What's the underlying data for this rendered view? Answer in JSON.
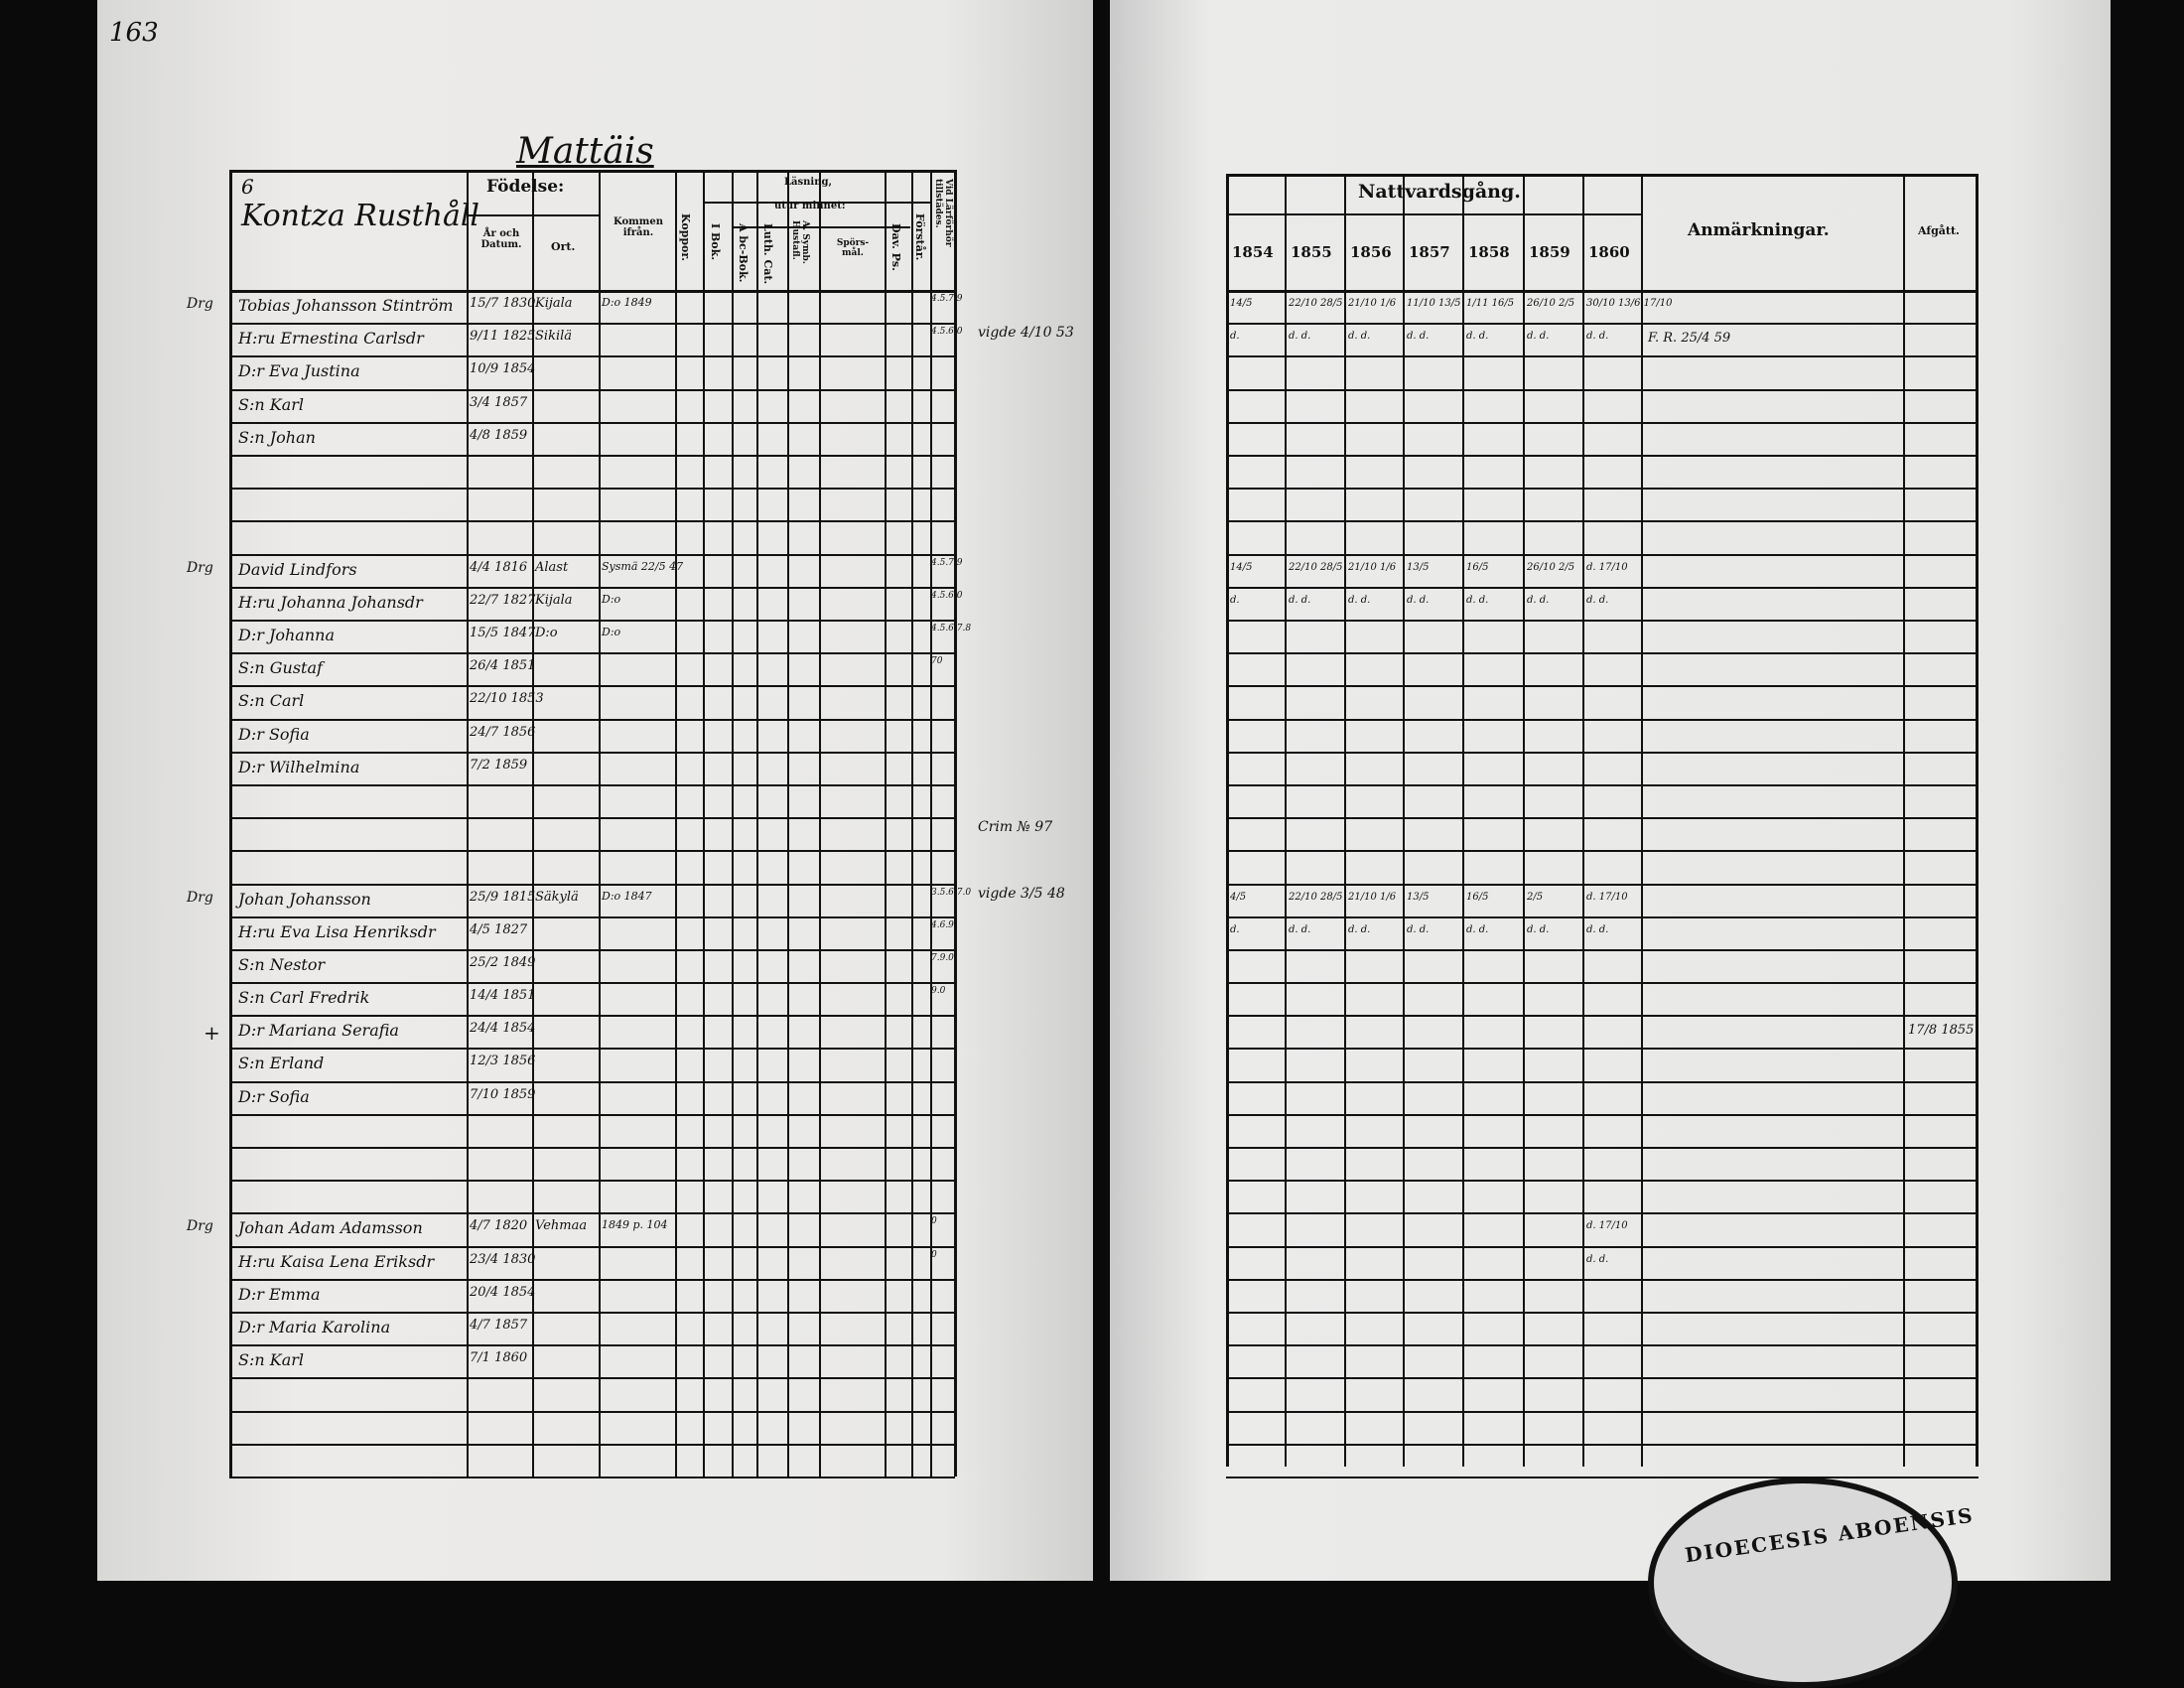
{
  "page_number": "163",
  "left": {
    "title": "Mattäis",
    "household_no": "6",
    "farm": "Kontza Rusthåll",
    "headers": {
      "fodelse": "Födelse:",
      "ar_datum": "År och Datum.",
      "ort": "Ort.",
      "kommen": "Kommen ifrån.",
      "koppor": "Koppor.",
      "lasning": "Läsning,",
      "utur": "utur minnet:",
      "bok": "I Bok.",
      "abc": "A bc-Bok.",
      "luth": "Luth. Cat.",
      "symb": "A. Symb. Hustafl.",
      "sporsmal": "Spörs-mål.",
      "davps": "Dav. Ps.",
      "forstar": "Förstår.",
      "vid": "Vid Lärförhör tillstädes."
    },
    "rows": [
      {
        "row": 0,
        "prefix": "Drg",
        "name": "Tobias Johansson Stintröm",
        "birth": "15/7 1830",
        "place": "Kijala",
        "from": "D:o 1849",
        "note": "4.5.7.9"
      },
      {
        "row": 1,
        "prefix": "",
        "name": "H:ru Ernestina Carlsdr",
        "birth": "9/11 1825",
        "place": "Sikilä",
        "from": "",
        "note": "4.5.6.0"
      },
      {
        "row": 2,
        "prefix": "",
        "name": "D:r Eva Justina",
        "birth": "10/9 1854",
        "place": "",
        "from": "",
        "note": ""
      },
      {
        "row": 3,
        "prefix": "",
        "name": "S:n Karl",
        "birth": "3/4 1857",
        "place": "",
        "from": "",
        "note": ""
      },
      {
        "row": 4,
        "prefix": "",
        "name": "S:n Johan",
        "birth": "4/8 1859",
        "place": "",
        "from": "",
        "note": ""
      },
      {
        "row": 8,
        "prefix": "Drg",
        "name": "David Lindfors",
        "birth": "4/4 1816",
        "place": "Alast",
        "from": "Sysmä 22/5 47",
        "note": "4.5.7.9"
      },
      {
        "row": 9,
        "prefix": "",
        "name": "H:ru Johanna Johansdr",
        "birth": "22/7 1827",
        "place": "Kijala",
        "from": "D:o",
        "note": "4.5.6.0"
      },
      {
        "row": 10,
        "prefix": "",
        "name": "D:r Johanna",
        "birth": "15/5 1847",
        "place": "D:o",
        "from": "D:o",
        "note": "4.5.6.7.8"
      },
      {
        "row": 11,
        "prefix": "",
        "name": "S:n Gustaf",
        "birth": "26/4 1851",
        "place": "",
        "from": "",
        "note": "70"
      },
      {
        "row": 12,
        "prefix": "",
        "name": "S:n Carl",
        "birth": "22/10 1853",
        "place": "",
        "from": "",
        "note": ""
      },
      {
        "row": 13,
        "prefix": "",
        "name": "D:r Sofia",
        "birth": "24/7 1856",
        "place": "",
        "from": "",
        "note": ""
      },
      {
        "row": 14,
        "prefix": "",
        "name": "D:r Wilhelmina",
        "birth": "7/2 1859",
        "place": "",
        "from": "",
        "note": ""
      },
      {
        "row": 18,
        "prefix": "Drg",
        "name": "Johan Johansson",
        "birth": "25/9 1815",
        "place": "Säkylä",
        "from": "D:o 1847",
        "note": "3.5.6.7.0"
      },
      {
        "row": 19,
        "prefix": "",
        "name": "H:ru Eva Lisa Henriksdr",
        "birth": "4/5 1827",
        "place": "",
        "from": "",
        "note": "4.6.9"
      },
      {
        "row": 20,
        "prefix": "",
        "name": "S:n Nestor",
        "birth": "25/2 1849",
        "place": "",
        "from": "",
        "note": "7.9.0"
      },
      {
        "row": 21,
        "prefix": "",
        "name": "S:n Carl Fredrik",
        "birth": "14/4 1851",
        "place": "",
        "from": "",
        "note": "9.0"
      },
      {
        "row": 22,
        "prefix": "+",
        "name": "D:r Mariana Serafia",
        "birth": "24/4 1854",
        "place": "",
        "from": "",
        "note": ""
      },
      {
        "row": 23,
        "prefix": "",
        "name": "S:n Erland",
        "birth": "12/3 1856",
        "place": "",
        "from": "",
        "note": ""
      },
      {
        "row": 24,
        "prefix": "",
        "name": "D:r Sofia",
        "birth": "7/10 1859",
        "place": "",
        "from": "",
        "note": ""
      },
      {
        "row": 28,
        "prefix": "Drg",
        "name": "Johan Adam Adamsson",
        "birth": "4/7 1820",
        "place": "Vehmaa",
        "from": "1849 p. 104",
        "note": "0"
      },
      {
        "row": 29,
        "prefix": "",
        "name": "H:ru Kaisa Lena Eriksdr",
        "birth": "23/4 1830",
        "place": "",
        "from": "",
        "note": "0"
      },
      {
        "row": 30,
        "prefix": "",
        "name": "D:r Emma",
        "birth": "20/4 1854",
        "place": "",
        "from": "",
        "note": ""
      },
      {
        "row": 31,
        "prefix": "",
        "name": "D:r Maria Karolina",
        "birth": "4/7 1857",
        "place": "",
        "from": "",
        "note": ""
      },
      {
        "row": 32,
        "prefix": "",
        "name": "S:n Karl",
        "birth": "7/1 1860",
        "place": "",
        "from": "",
        "note": ""
      }
    ],
    "margin_notes": [
      {
        "row": 1,
        "text": "vigde 4/10 53"
      },
      {
        "row": 16,
        "text": "Crim № 97"
      },
      {
        "row": 18,
        "text": "vigde 3/5 48"
      }
    ]
  },
  "right": {
    "nattvard": "Nattvardsgång.",
    "years": [
      "1854",
      "1855",
      "1856",
      "1857",
      "1858",
      "1859",
      "1860"
    ],
    "anmarkningar": "Anmärkningar.",
    "afgatt": "Afgått.",
    "rows": [
      {
        "row": 0,
        "cells": [
          "14/5",
          "22/10 28/5",
          "21/10 1/6",
          "11/10 13/5",
          "1/11 16/5",
          "26/10 2/5",
          "30/10 13/6 17/10"
        ],
        "remark": "",
        "afgatt": ""
      },
      {
        "row": 1,
        "cells": [
          "d.",
          "d. d.",
          "d. d.",
          "d. d.",
          "d. d.",
          "d. d.",
          "d. d."
        ],
        "remark": "F. R. 25/4 59",
        "afgatt": ""
      },
      {
        "row": 8,
        "cells": [
          "14/5",
          "22/10 28/5",
          "21/10 1/6",
          "13/5",
          "16/5",
          "26/10 2/5",
          "d. 17/10"
        ],
        "remark": "",
        "afgatt": ""
      },
      {
        "row": 9,
        "cells": [
          "d.",
          "d. d.",
          "d. d.",
          "d. d.",
          "d. d.",
          "d. d.",
          "d. d."
        ],
        "remark": "",
        "afgatt": ""
      },
      {
        "row": 18,
        "cells": [
          "4/5",
          "22/10 28/5",
          "21/10 1/6",
          "13/5",
          "16/5",
          "2/5",
          "d. 17/10"
        ],
        "remark": "",
        "afgatt": ""
      },
      {
        "row": 19,
        "cells": [
          "d.",
          "d. d.",
          "d. d.",
          "d. d.",
          "d. d.",
          "d. d.",
          "d. d."
        ],
        "remark": "",
        "afgatt": ""
      },
      {
        "row": 22,
        "cells": [
          "",
          "",
          "",
          "",
          "",
          "",
          ""
        ],
        "remark": "",
        "afgatt": "17/8 1855"
      },
      {
        "row": 28,
        "cells": [
          "",
          "",
          "",
          "",
          "",
          "",
          "d. 17/10"
        ],
        "remark": "",
        "afgatt": ""
      },
      {
        "row": 29,
        "cells": [
          "",
          "",
          "",
          "",
          "",
          "",
          "d. d."
        ],
        "remark": "",
        "afgatt": ""
      }
    ]
  },
  "stamp": "DIOECESIS ABOENSIS"
}
